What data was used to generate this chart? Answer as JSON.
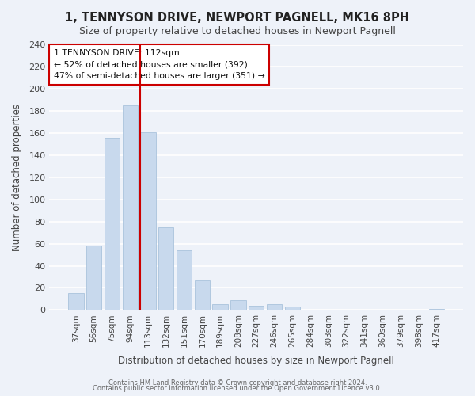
{
  "title": "1, TENNYSON DRIVE, NEWPORT PAGNELL, MK16 8PH",
  "subtitle": "Size of property relative to detached houses in Newport Pagnell",
  "xlabel": "Distribution of detached houses by size in Newport Pagnell",
  "ylabel": "Number of detached properties",
  "bar_color": "#c8d9ed",
  "bar_edge_color": "#a0bcd8",
  "background_color": "#eef2f9",
  "grid_color": "white",
  "categories": [
    "37sqm",
    "56sqm",
    "75sqm",
    "94sqm",
    "113sqm",
    "132sqm",
    "151sqm",
    "170sqm",
    "189sqm",
    "208sqm",
    "227sqm",
    "246sqm",
    "265sqm",
    "284sqm",
    "303sqm",
    "322sqm",
    "341sqm",
    "360sqm",
    "379sqm",
    "398sqm",
    "417sqm"
  ],
  "values": [
    15,
    58,
    156,
    185,
    161,
    75,
    54,
    27,
    5,
    9,
    4,
    5,
    3,
    0,
    0,
    0,
    0,
    0,
    0,
    0,
    1
  ],
  "ylim": [
    0,
    240
  ],
  "yticks": [
    0,
    20,
    40,
    60,
    80,
    100,
    120,
    140,
    160,
    180,
    200,
    220,
    240
  ],
  "vline_index": 4,
  "vline_color": "#cc0000",
  "annotation_title": "1 TENNYSON DRIVE: 112sqm",
  "annotation_line1": "← 52% of detached houses are smaller (392)",
  "annotation_line2": "47% of semi-detached houses are larger (351) →",
  "annotation_box_color": "white",
  "annotation_box_edge": "#cc0000",
  "footer1": "Contains HM Land Registry data © Crown copyright and database right 2024.",
  "footer2": "Contains public sector information licensed under the Open Government Licence v3.0."
}
